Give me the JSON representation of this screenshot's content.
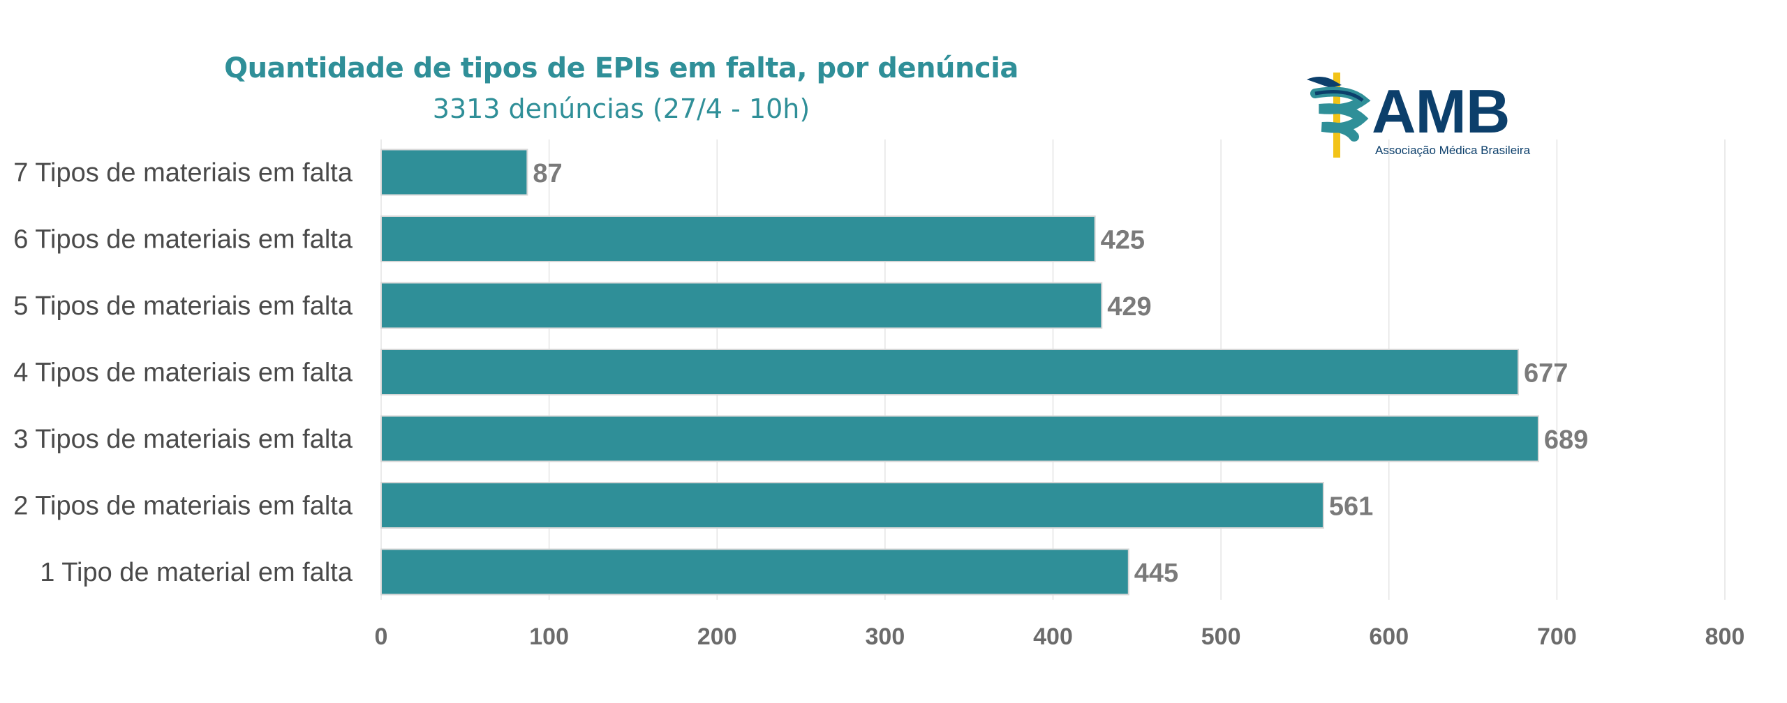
{
  "chart_data": {
    "type": "bar",
    "orientation": "horizontal",
    "title": "Quantidade de tipos de EPIs em falta, por denúncia",
    "subtitle": "3313 denúncias (27/4 - 10h)",
    "categories": [
      "7 Tipos de materiais em falta",
      "6 Tipos de materiais em falta",
      "5 Tipos de materiais em falta",
      "4 Tipos de materiais em falta",
      "3 Tipos de materiais em falta",
      "2 Tipos de materiais em falta",
      "1 Tipo de material em falta"
    ],
    "values": [
      87,
      425,
      429,
      677,
      689,
      561,
      445
    ],
    "xlim": [
      0,
      800
    ],
    "xticks": [
      0,
      100,
      200,
      300,
      400,
      500,
      600,
      700,
      800
    ],
    "grid": "vertical",
    "data_labels": true,
    "legend": "none",
    "bar_color": "#2f8f98"
  },
  "logo": {
    "text": "AMB",
    "caption": "Associação Médica Brasileira",
    "colors": {
      "navy": "#0c3f6b",
      "yellow": "#f2c318",
      "teal": "#2f8f98"
    }
  }
}
